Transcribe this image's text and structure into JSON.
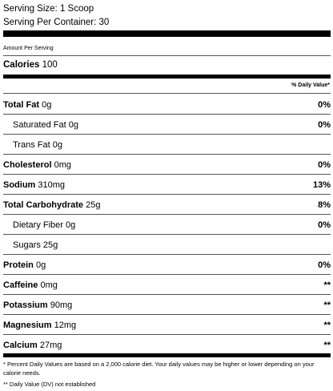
{
  "serving_size": "Serving Size: 1 Scoop",
  "serving_per_container": "Serving Per Container: 30",
  "amount_per_serving": "Amount Per Serving",
  "calories": {
    "label": "Calories",
    "value": "100"
  },
  "dv_header": "% Daily Value*",
  "nutrients": [
    {
      "label": "Total Fat",
      "amount": "0g",
      "dv": "0%"
    },
    {
      "label": "Saturated Fat",
      "amount": "0g",
      "dv": "0%"
    },
    {
      "label": "Trans Fat",
      "amount": "0g",
      "dv": ""
    },
    {
      "label": "Cholesterol",
      "amount": "0mg",
      "dv": "0%"
    },
    {
      "label": "Sodium",
      "amount": "310mg",
      "dv": "13%"
    },
    {
      "label": "Total Carbohydrate",
      "amount": "25g",
      "dv": "8%"
    },
    {
      "label": "Dietary Fiber",
      "amount": "0g",
      "dv": "0%"
    },
    {
      "label": "Sugars",
      "amount": "25g",
      "dv": ""
    },
    {
      "label": "Protein",
      "amount": "0g",
      "dv": "0%"
    },
    {
      "label": "Caffeine",
      "amount": "0mg",
      "dv": "**"
    },
    {
      "label": "Potassium",
      "amount": "90mg",
      "dv": "**"
    },
    {
      "label": "Magnesium",
      "amount": "12mg",
      "dv": "**"
    },
    {
      "label": "Calcium",
      "amount": "27mg",
      "dv": "**"
    }
  ],
  "footnotes": {
    "percent_dv": "* Percent Daily Values are based on a 2,000 calorie diet. Your daily values may be higher or lower depending on your calorie needs.",
    "not_established": "** Daily Value (DV) not established"
  }
}
